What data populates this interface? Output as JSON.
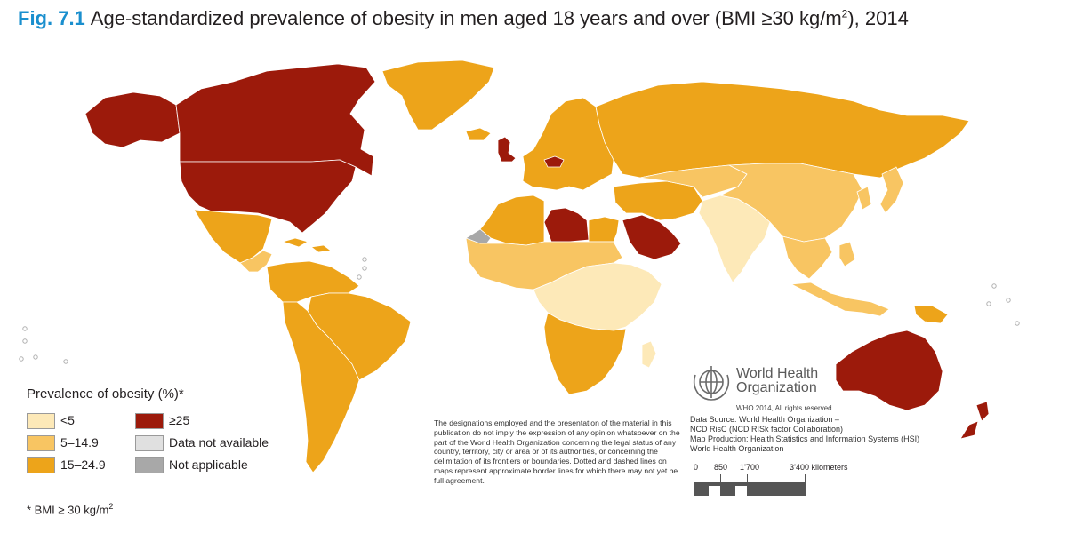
{
  "title": {
    "fig_label": "Fig. 7.1",
    "text": "Age-standardized prevalence of obesity in men aged 18 years and over (BMI ≥30 kg/m",
    "superscript": "2",
    "suffix": "), 2014"
  },
  "colors": {
    "lt5": "#fde9b8",
    "c5_14": "#f8c562",
    "c15_24": "#eda41a",
    "ge25": "#9c1a0b",
    "na_data": "#e0e0e0",
    "not_applicable": "#a8a8a8",
    "title_accent": "#1a8fce"
  },
  "legend": {
    "title": "Prevalence of obesity (%)*",
    "items": [
      {
        "label": "<5",
        "color_key": "lt5"
      },
      {
        "label": "5–14.9",
        "color_key": "c5_14"
      },
      {
        "label": "15–24.9",
        "color_key": "c15_24"
      },
      {
        "label": "≥25",
        "color_key": "ge25"
      },
      {
        "label": "Data not available",
        "color_key": "na_data"
      },
      {
        "label": "Not applicable",
        "color_key": "not_applicable"
      }
    ]
  },
  "footnote": {
    "text": "* BMI ≥ 30 kg/m",
    "superscript": "2"
  },
  "disclaimer": "The designations employed and the presentation of the material in this publication do not imply the expression of any opinion whatsoever on the part of the World Health Organization concerning the legal status of any country, territory, city or area or of its authorities, or concerning the delimitation of its frontiers or boundaries. Dotted and dashed lines on maps represent approximate border lines for which there may not yet be full agreement.",
  "who": {
    "name_line1": "World Health",
    "name_line2": "Organization",
    "copyright": "WHO 2014, All rights reserved.",
    "credits": [
      "Data Source: World Health Organization –",
      "NCD RisC (NCD RISk factor Collaboration)",
      "Map Production: Health Statistics and Information Systems (HSI)",
      "World Health Organization"
    ]
  },
  "scale": {
    "labels": [
      "0",
      "850",
      "1’700",
      "3’400 kilometers"
    ]
  },
  "regions": [
    {
      "name": "alaska",
      "class": "ge25"
    },
    {
      "name": "canada",
      "class": "ge25"
    },
    {
      "name": "united-states",
      "class": "ge25"
    },
    {
      "name": "greenland",
      "class": "c15_24"
    },
    {
      "name": "mexico",
      "class": "c15_24"
    },
    {
      "name": "central-america",
      "class": "c5_14"
    },
    {
      "name": "caribbean",
      "class": "c15_24"
    },
    {
      "name": "south-america-north",
      "class": "c15_24"
    },
    {
      "name": "brazil",
      "class": "c15_24"
    },
    {
      "name": "southern-cone",
      "class": "c15_24"
    },
    {
      "name": "iceland",
      "class": "c15_24"
    },
    {
      "name": "united-kingdom",
      "class": "ge25"
    },
    {
      "name": "europe",
      "class": "c15_24"
    },
    {
      "name": "czech-republic",
      "class": "ge25"
    },
    {
      "name": "russia",
      "class": "c15_24"
    },
    {
      "name": "north-africa",
      "class": "c15_24"
    },
    {
      "name": "western-sahara",
      "class": "not_applicable"
    },
    {
      "name": "libya",
      "class": "ge25"
    },
    {
      "name": "egypt",
      "class": "c15_24"
    },
    {
      "name": "arabian-peninsula",
      "class": "ge25"
    },
    {
      "name": "middle-east",
      "class": "c15_24"
    },
    {
      "name": "sahel-west-africa",
      "class": "c5_14"
    },
    {
      "name": "central-east-africa",
      "class": "lt5"
    },
    {
      "name": "southern-africa",
      "class": "c15_24"
    },
    {
      "name": "madagascar",
      "class": "lt5"
    },
    {
      "name": "central-asia",
      "class": "c5_14"
    },
    {
      "name": "south-asia",
      "class": "lt5"
    },
    {
      "name": "china-mongolia",
      "class": "c5_14"
    },
    {
      "name": "korea-japan",
      "class": "c5_14"
    },
    {
      "name": "southeast-asia",
      "class": "c5_14"
    },
    {
      "name": "indonesia-philippines",
      "class": "c5_14"
    },
    {
      "name": "papua-new-guinea",
      "class": "c15_24"
    },
    {
      "name": "australia",
      "class": "ge25"
    },
    {
      "name": "new-zealand",
      "class": "ge25"
    }
  ]
}
